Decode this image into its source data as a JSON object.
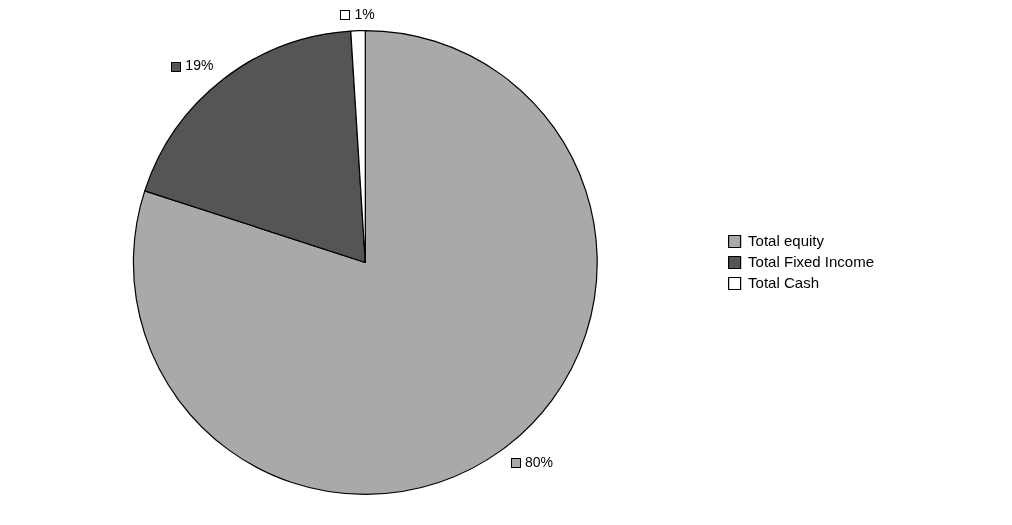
{
  "chart_data": {
    "type": "pie",
    "categories": [
      "Total equity",
      "Total Fixed Income",
      "Total Cash"
    ],
    "values": [
      80,
      19,
      1
    ],
    "colors": [
      "#a9a9a9",
      "#555555",
      "#ffffff"
    ],
    "value_labels": [
      "80%",
      "19%",
      "1%"
    ],
    "legend": "right"
  }
}
